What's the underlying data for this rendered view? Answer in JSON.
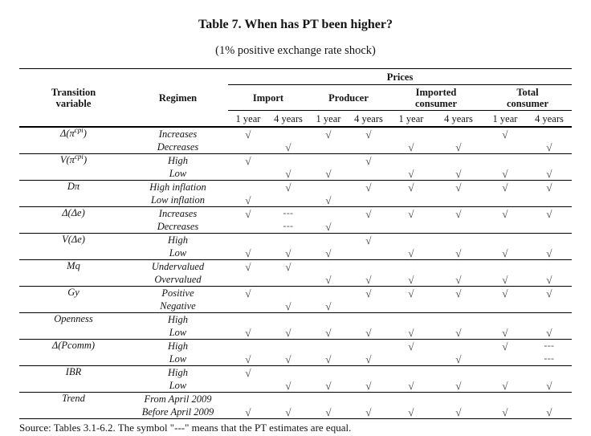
{
  "title": "Table 7. When has PT been higher?",
  "subtitle": "(1% positive exchange rate shock)",
  "table": {
    "headers": {
      "transition": "Transition\nvariable",
      "regimen": "Regimen",
      "prices": "Prices",
      "groups": [
        "Import",
        "Producer",
        "Imported\nconsumer",
        "Total\nconsumer"
      ],
      "periods": [
        "1 year",
        "4 years"
      ]
    },
    "symbols": {
      "check": "√",
      "equal": "---"
    },
    "groups": [
      {
        "variable": {
          "base": "Δ(π",
          "sup": "cpi",
          "tail": ")"
        },
        "rows": [
          {
            "regimen": "Increases",
            "cells": [
              "check",
              "",
              "check",
              "check",
              "",
              "",
              "check",
              ""
            ]
          },
          {
            "regimen": "Decreases",
            "cells": [
              "",
              "check",
              "",
              "",
              "check",
              "check",
              "",
              "check"
            ]
          }
        ]
      },
      {
        "variable": {
          "base": "V(π",
          "sup": "cpi",
          "tail": ")"
        },
        "rows": [
          {
            "regimen": "High",
            "cells": [
              "check",
              "",
              "",
              "check",
              "",
              "",
              "",
              ""
            ]
          },
          {
            "regimen": "Low",
            "cells": [
              "",
              "check",
              "check",
              "",
              "check",
              "check",
              "check",
              "check"
            ]
          }
        ]
      },
      {
        "variable": {
          "base": "Dπ",
          "sup": "",
          "tail": ""
        },
        "rows": [
          {
            "regimen": "High inflation",
            "cells": [
              "",
              "check",
              "",
              "check",
              "check",
              "check",
              "check",
              "check"
            ]
          },
          {
            "regimen": "Low inflation",
            "cells": [
              "check",
              "",
              "check",
              "",
              "",
              "",
              "",
              ""
            ]
          }
        ]
      },
      {
        "variable": {
          "base": "Δ(Δe)",
          "sup": "",
          "tail": ""
        },
        "rows": [
          {
            "regimen": "Increases",
            "cells": [
              "check",
              "equal",
              "",
              "check",
              "check",
              "check",
              "check",
              "check"
            ]
          },
          {
            "regimen": "Decreases",
            "cells": [
              "",
              "equal",
              "check",
              "",
              "",
              "",
              "",
              ""
            ]
          }
        ]
      },
      {
        "variable": {
          "base": "V(Δe)",
          "sup": "",
          "tail": ""
        },
        "rows": [
          {
            "regimen": "High",
            "cells": [
              "",
              "",
              "",
              "check",
              "",
              "",
              "",
              ""
            ]
          },
          {
            "regimen": "Low",
            "cells": [
              "check",
              "check",
              "check",
              "",
              "check",
              "check",
              "check",
              "check"
            ]
          }
        ]
      },
      {
        "variable": {
          "base": "Mq",
          "sup": "",
          "tail": ""
        },
        "rows": [
          {
            "regimen": "Undervalued",
            "cells": [
              "check",
              "check",
              "",
              "",
              "",
              "",
              "",
              ""
            ]
          },
          {
            "regimen": "Overvalued",
            "cells": [
              "",
              "",
              "check",
              "check",
              "check",
              "check",
              "check",
              "check"
            ]
          }
        ]
      },
      {
        "variable": {
          "base": "Gy",
          "sup": "",
          "tail": ""
        },
        "rows": [
          {
            "regimen": "Positive",
            "cells": [
              "check",
              "",
              "",
              "check",
              "check",
              "check",
              "check",
              "check"
            ]
          },
          {
            "regimen": "Negative",
            "cells": [
              "",
              "check",
              "check",
              "",
              "",
              "",
              "",
              ""
            ]
          }
        ]
      },
      {
        "variable": {
          "base": "Openness",
          "sup": "",
          "tail": ""
        },
        "rows": [
          {
            "regimen": "High",
            "cells": [
              "",
              "",
              "",
              "",
              "",
              "",
              "",
              ""
            ]
          },
          {
            "regimen": "Low",
            "cells": [
              "check",
              "check",
              "check",
              "check",
              "check",
              "check",
              "check",
              "check"
            ]
          }
        ]
      },
      {
        "variable": {
          "base": "Δ(Pcomm)",
          "sup": "",
          "tail": ""
        },
        "rows": [
          {
            "regimen": "High",
            "cells": [
              "",
              "",
              "",
              "",
              "check",
              "",
              "check",
              "equal"
            ]
          },
          {
            "regimen": "Low",
            "cells": [
              "check",
              "check",
              "check",
              "check",
              "",
              "check",
              "",
              "equal"
            ]
          }
        ]
      },
      {
        "variable": {
          "base": "IBR",
          "sup": "",
          "tail": ""
        },
        "rows": [
          {
            "regimen": "High",
            "cells": [
              "check",
              "",
              "",
              "",
              "",
              "",
              "",
              ""
            ]
          },
          {
            "regimen": "Low",
            "cells": [
              "",
              "check",
              "check",
              "check",
              "check",
              "check",
              "check",
              "check"
            ]
          }
        ]
      },
      {
        "variable": {
          "base": "Trend",
          "sup": "",
          "tail": ""
        },
        "rows": [
          {
            "regimen": "From April 2009",
            "cells": [
              "",
              "",
              "",
              "",
              "",
              "",
              "",
              ""
            ]
          },
          {
            "regimen": "Before April 2009",
            "cells": [
              "check",
              "check",
              "check",
              "check",
              "check",
              "check",
              "check",
              "check"
            ]
          }
        ]
      }
    ]
  },
  "footer": "Source: Tables 3.1-6.2. The symbol \"---\" means that the PT estimates are equal."
}
